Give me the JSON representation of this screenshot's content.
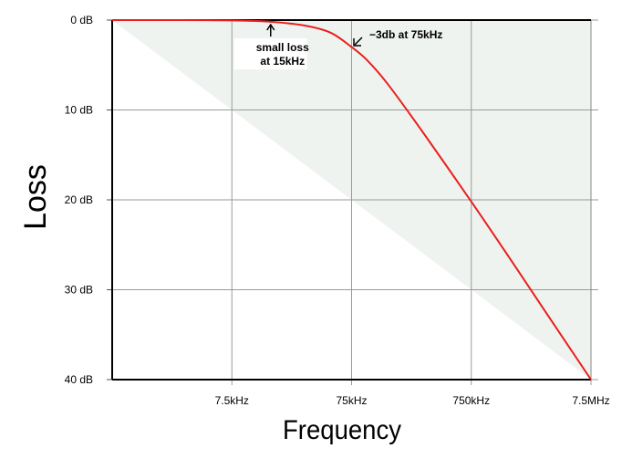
{
  "chart_data": {
    "type": "line",
    "title": "",
    "xlabel": "Frequency",
    "ylabel": "Loss",
    "x_scale": "log",
    "y_inverted": true,
    "xlim_hz": [
      750,
      7500000
    ],
    "ylim_db": [
      0,
      40
    ],
    "grid": true,
    "y_ticks": [
      {
        "value": 0,
        "label": "0 dB"
      },
      {
        "value": 10,
        "label": "10 dB"
      },
      {
        "value": 20,
        "label": "20 dB"
      },
      {
        "value": 30,
        "label": "30 dB"
      },
      {
        "value": 40,
        "label": "40 dB"
      }
    ],
    "x_ticks": [
      {
        "value": 7500,
        "label": "7.5kHz"
      },
      {
        "value": 75000,
        "label": "75kHz"
      },
      {
        "value": 750000,
        "label": "750kHz"
      },
      {
        "value": 7500000,
        "label": "7.5MHz"
      }
    ],
    "series": [
      {
        "color": "#e8201f",
        "x": [
          750,
          1500,
          3000,
          7500,
          15000,
          30000,
          50000,
          75000,
          100000,
          150000,
          300000,
          750000,
          1500000,
          3000000,
          7500000
        ],
        "y": [
          0,
          0,
          0,
          0.04,
          0.17,
          0.6,
          1.4,
          3.0,
          4.4,
          7.1,
          12.6,
          20.2,
          26.1,
          32.1,
          40.0
        ]
      }
    ],
    "shaded_region": {
      "color": "#eff3ef",
      "x": [
        750,
        7500000
      ],
      "y": [
        0,
        40
      ]
    },
    "annotations": [
      {
        "line1": "small loss",
        "line2": "at 15kHz",
        "x": 15000,
        "y": 0.17
      },
      {
        "text": "−3db at 75kHz",
        "x": 75000,
        "y": 3.0
      }
    ]
  }
}
